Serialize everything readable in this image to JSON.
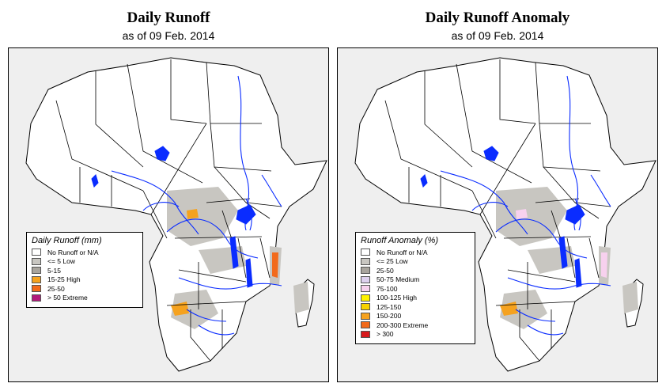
{
  "panels": [
    {
      "title": "Daily Runoff",
      "subtitle": "as of  09 Feb. 2014",
      "legend": {
        "title": "Daily Runoff (mm)",
        "items": [
          {
            "label": "No Runoff or N/A",
            "color": "#ffffff"
          },
          {
            "label": "<= 5  Low",
            "color": "#c8c6c1"
          },
          {
            "label": "5-15",
            "color": "#a8a49d"
          },
          {
            "label": "15-25 High",
            "color": "#f5a21f"
          },
          {
            "label": "25-50",
            "color": "#f26a1b"
          },
          {
            "label": "> 50  Extreme",
            "color": "#b3197b"
          }
        ]
      }
    },
    {
      "title": "Daily Runoff Anomaly",
      "subtitle": "as of  09 Feb. 2014",
      "legend": {
        "title": "Runoff Anomaly (%)",
        "items": [
          {
            "label": "No Runoff or N/A",
            "color": "#ffffff"
          },
          {
            "label": "<= 25      Low",
            "color": "#c8c6c1"
          },
          {
            "label": "25-50",
            "color": "#a8a49d"
          },
          {
            "label": "50-75   Medium",
            "color": "#ddd0ee"
          },
          {
            "label": "75-100",
            "color": "#f7d1ee"
          },
          {
            "label": "100-125  High",
            "color": "#fff200"
          },
          {
            "label": "125-150",
            "color": "#f8d200"
          },
          {
            "label": "150-200",
            "color": "#f5a21f"
          },
          {
            "label": "200-300  Extreme",
            "color": "#f26a1b"
          },
          {
            "label": "> 300",
            "color": "#d7191c"
          }
        ]
      }
    }
  ],
  "colors": {
    "ocean": "#efefef",
    "land": "#ffffff",
    "border": "#000000",
    "water": "#0a2cff",
    "runoff_low": "#c8c6c1"
  }
}
